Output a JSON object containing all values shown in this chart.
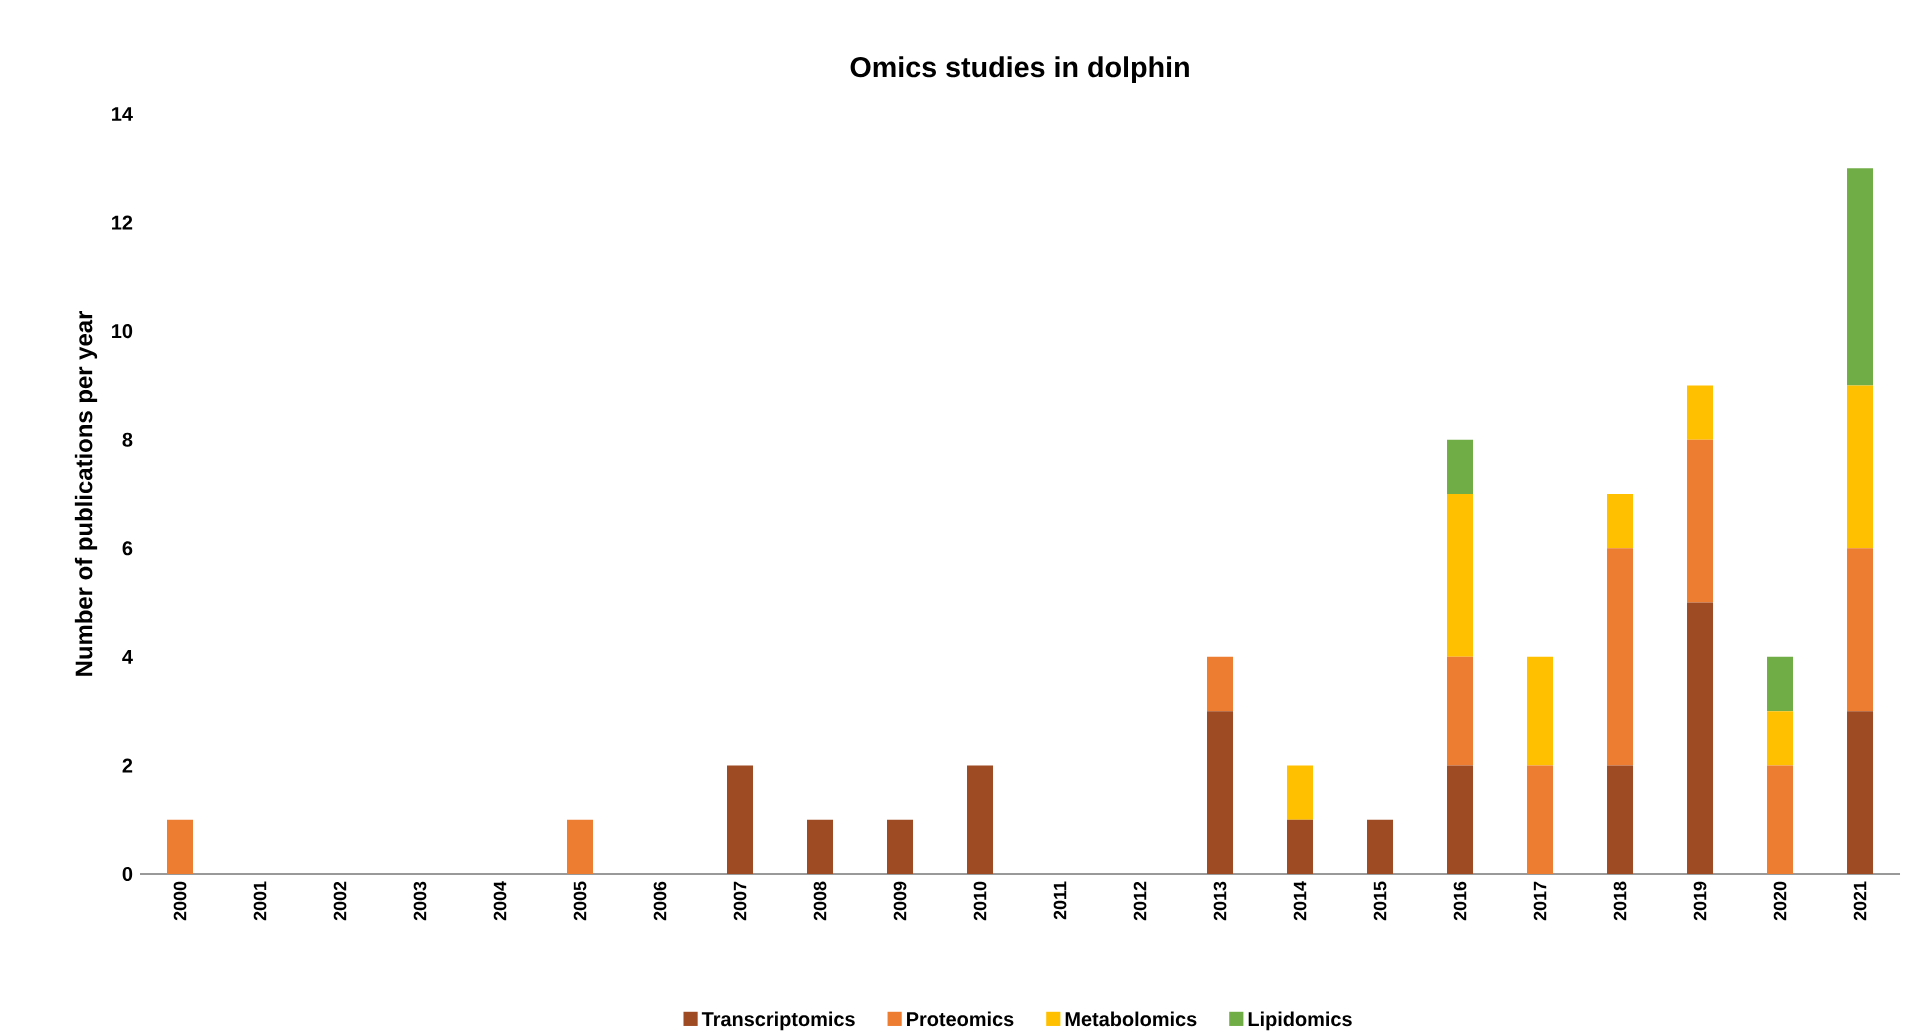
{
  "chart_data": {
    "type": "bar",
    "title": "Omics studies in dolphin",
    "ylabel": "Number of publications per year",
    "categories": [
      "2000",
      "2001",
      "2002",
      "2003",
      "2004",
      "2005",
      "2006",
      "2007",
      "2008",
      "2009",
      "2010",
      "2011",
      "2012",
      "2013",
      "2014",
      "2015",
      "2016",
      "2017",
      "2018",
      "2019",
      "2020",
      "2021"
    ],
    "series": [
      {
        "name": "Transcriptomics",
        "color": "#9e4a23",
        "values": [
          0,
          0,
          0,
          0,
          0,
          0,
          0,
          2,
          1,
          1,
          2,
          0,
          0,
          3,
          1,
          1,
          2,
          0,
          2,
          5,
          0,
          3
        ]
      },
      {
        "name": "Proteomics",
        "color": "#ed7d31",
        "values": [
          1,
          0,
          0,
          0,
          0,
          1,
          0,
          0,
          0,
          0,
          0,
          0,
          0,
          1,
          0,
          0,
          2,
          2,
          4,
          3,
          2,
          3
        ]
      },
      {
        "name": "Metabolomics",
        "color": "#ffc000",
        "values": [
          0,
          0,
          0,
          0,
          0,
          0,
          0,
          0,
          0,
          0,
          0,
          0,
          0,
          0,
          1,
          0,
          3,
          2,
          1,
          1,
          1,
          3
        ]
      },
      {
        "name": "Lipidomics",
        "color": "#70ad47",
        "values": [
          0,
          0,
          0,
          0,
          0,
          0,
          0,
          0,
          0,
          0,
          0,
          0,
          0,
          0,
          0,
          0,
          1,
          0,
          0,
          0,
          1,
          4
        ]
      }
    ],
    "stacked": true,
    "ylim": [
      0,
      14
    ],
    "yticks": [
      0,
      2,
      4,
      6,
      8,
      10,
      12,
      14
    ],
    "grid": false,
    "legend": "bottom"
  }
}
